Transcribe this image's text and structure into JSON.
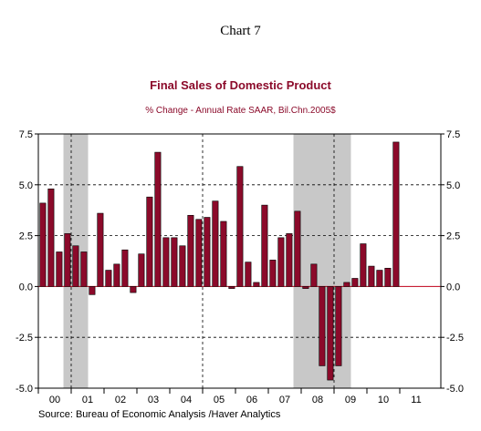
{
  "figure": {
    "heading": "Chart 7",
    "source": "Source:  Bureau of Economic Analysis /Haver Analytics"
  },
  "chart_data": {
    "type": "bar",
    "title": "Final Sales of Domestic Product",
    "subtitle": "% Change - Annual Rate     SAAR, Bil.Chn.2005$",
    "ylim": [
      -5.0,
      7.5
    ],
    "yticks": [
      "7.5",
      "5.0",
      "2.5",
      "0.0",
      "-2.5",
      "-5.0"
    ],
    "year_labels": [
      "00",
      "01",
      "02",
      "03",
      "04",
      "05",
      "06",
      "07",
      "08",
      "09",
      "10",
      "11"
    ],
    "bar_color": "#8b0a2a",
    "recession_color": "#c8c8c8",
    "recession_shading": [
      {
        "from_quarter": 3,
        "to_quarter": 5
      },
      {
        "from_quarter": 31,
        "to_quarter": 37
      }
    ],
    "series": [
      {
        "values": [
          4.1,
          4.8,
          1.7,
          2.6,
          2.0,
          1.7,
          -0.4,
          3.6,
          0.8,
          1.1,
          1.8,
          -0.3,
          1.6,
          4.4,
          6.6,
          2.4,
          2.4,
          2.0,
          3.5,
          3.3,
          3.4,
          4.2,
          3.2,
          -0.1,
          5.9,
          1.2,
          0.2,
          4.0,
          1.3,
          2.4,
          2.6,
          3.7,
          -0.1,
          1.1,
          -3.9,
          -4.6,
          -3.9,
          0.2,
          0.4,
          2.1,
          1.0,
          0.8,
          0.9,
          7.1
        ]
      }
    ]
  }
}
